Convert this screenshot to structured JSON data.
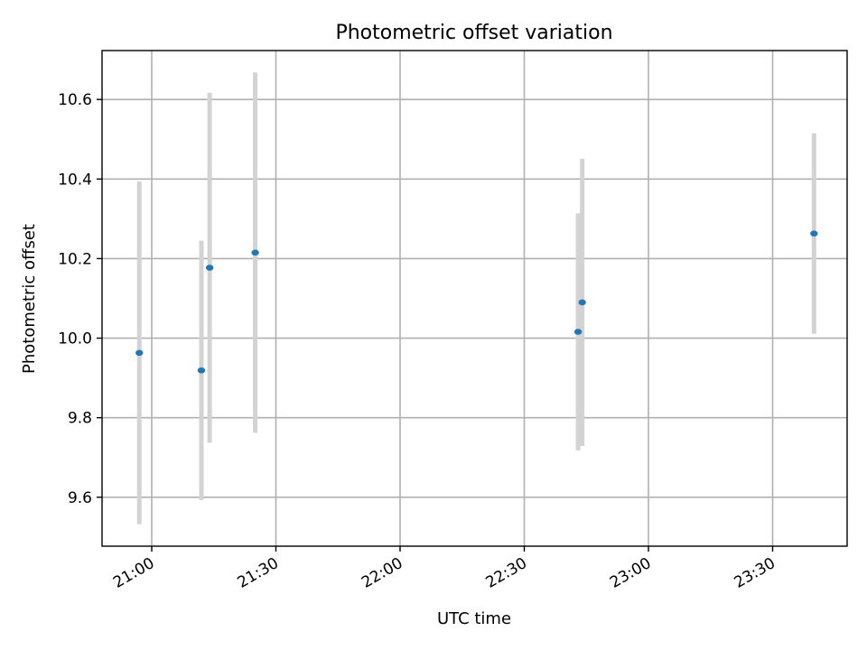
{
  "chart_data": {
    "type": "scatter",
    "title": "Photometric offset variation",
    "xlabel": "UTC time",
    "ylabel": "Photometric offset",
    "x_type": "time",
    "xlim": [
      "20:48",
      "23:48"
    ],
    "ylim": [
      9.477,
      10.723
    ],
    "x_ticks": [
      "21:00",
      "21:30",
      "22:00",
      "22:30",
      "23:00",
      "23:30"
    ],
    "y_ticks": [
      9.6,
      9.8,
      10.0,
      10.2,
      10.4,
      10.6
    ],
    "y_tick_labels": [
      "9.6",
      "9.8",
      "10.0",
      "10.2",
      "10.4",
      "10.6"
    ],
    "grid": true,
    "series": [
      {
        "color": "#1f77b4",
        "error_color": "#d3d3d3",
        "points": [
          {
            "x": "20:57",
            "y": 9.963,
            "y_low": 9.532,
            "y_high": 10.394
          },
          {
            "x": "21:12",
            "y": 9.919,
            "y_low": 9.593,
            "y_high": 10.245
          },
          {
            "x": "21:14",
            "y": 10.177,
            "y_low": 9.737,
            "y_high": 10.617
          },
          {
            "x": "21:25",
            "y": 10.215,
            "y_low": 9.762,
            "y_high": 10.668
          },
          {
            "x": "22:43",
            "y": 10.016,
            "y_low": 9.718,
            "y_high": 10.314
          },
          {
            "x": "22:44",
            "y": 10.09,
            "y_low": 9.729,
            "y_high": 10.451
          },
          {
            "x": "23:40",
            "y": 10.263,
            "y_low": 10.011,
            "y_high": 10.515
          }
        ]
      }
    ]
  }
}
